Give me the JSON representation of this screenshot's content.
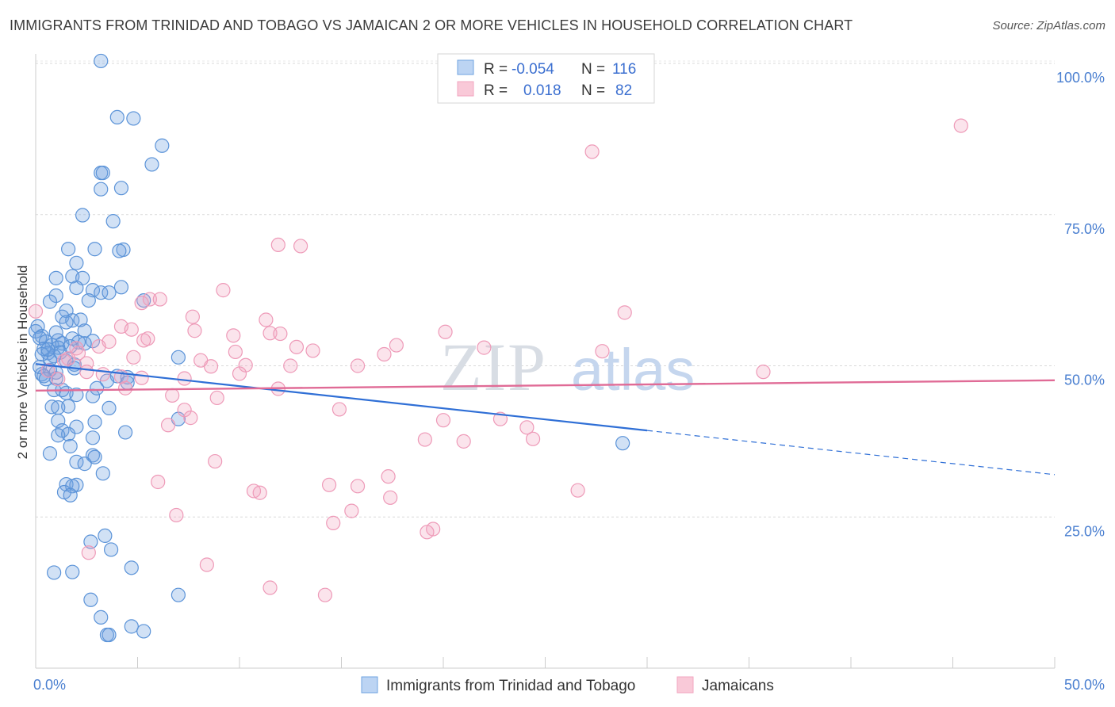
{
  "header": {
    "title": "IMMIGRANTS FROM TRINIDAD AND TOBAGO VS JAMAICAN 2 OR MORE VEHICLES IN HOUSEHOLD CORRELATION CHART",
    "source": "Source: ZipAtlas.com"
  },
  "watermark": {
    "zip": "ZIP",
    "atlas": "atlas"
  },
  "legend_box": {
    "rows": [
      {
        "r_label": "R =",
        "r_value": "-0.054",
        "n_label": "N =",
        "n_value": "116"
      },
      {
        "r_label": "R =",
        "r_value": "0.018",
        "n_label": "N =",
        "n_value": "82"
      }
    ]
  },
  "colors": {
    "blue": "#6fa3e0",
    "blue_line": "#2f6fd6",
    "pink": "#f2a6c0",
    "pink_line": "#e06b96"
  },
  "chart_data": {
    "type": "scatter",
    "title": "IMMIGRANTS FROM TRINIDAD AND TOBAGO VS JAMAICAN 2 OR MORE VEHICLES IN HOUSEHOLD CORRELATION CHART",
    "xlabel": "",
    "ylabel": "2 or more Vehicles in Household",
    "xlim": [
      0,
      50
    ],
    "ylim": [
      0,
      100
    ],
    "x_ticks": [
      "0.0%",
      "50.0%"
    ],
    "y_ticks": [
      "100.0%",
      "75.0%",
      "50.0%",
      "25.0%"
    ],
    "y_tick_values": [
      100,
      75,
      50,
      25
    ],
    "grid": true,
    "legend_position": "bottom",
    "series": [
      {
        "name": "Immigrants from Trinidad and Tobago",
        "color": "#6fa3e0",
        "trend": {
          "x0": 0,
          "y0": 50.3,
          "x1": 30,
          "y1": 39.3,
          "dash_x1": 50,
          "dash_y1": 32.0
        },
        "points": [
          [
            3.2,
            100.4
          ],
          [
            4.0,
            91.1
          ],
          [
            4.8,
            90.9
          ],
          [
            6.2,
            86.4
          ],
          [
            5.7,
            83.3
          ],
          [
            3.2,
            81.9
          ],
          [
            3.3,
            81.9
          ],
          [
            3.2,
            79.2
          ],
          [
            4.2,
            79.4
          ],
          [
            2.3,
            74.9
          ],
          [
            3.8,
            73.9
          ],
          [
            2.9,
            69.3
          ],
          [
            1.6,
            69.3
          ],
          [
            4.3,
            69.2
          ],
          [
            4.1,
            69.0
          ],
          [
            2.0,
            67.0
          ],
          [
            1.0,
            64.5
          ],
          [
            1.8,
            64.8
          ],
          [
            2.3,
            64.5
          ],
          [
            2.0,
            62.9
          ],
          [
            2.8,
            62.5
          ],
          [
            4.2,
            63.0
          ],
          [
            3.2,
            62.1
          ],
          [
            3.6,
            62.1
          ],
          [
            1.0,
            61.6
          ],
          [
            0.7,
            60.6
          ],
          [
            2.6,
            60.8
          ],
          [
            5.3,
            60.8
          ],
          [
            1.5,
            59.1
          ],
          [
            1.3,
            58.1
          ],
          [
            1.8,
            57.5
          ],
          [
            1.5,
            57.2
          ],
          [
            0.1,
            56.5
          ],
          [
            0.0,
            55.7
          ],
          [
            2.4,
            55.8
          ],
          [
            1.0,
            55.5
          ],
          [
            0.3,
            54.9
          ],
          [
            0.2,
            54.6
          ],
          [
            1.8,
            54.5
          ],
          [
            0.5,
            54.0
          ],
          [
            1.1,
            54.2
          ],
          [
            2.8,
            54.1
          ],
          [
            2.1,
            53.9
          ],
          [
            0.8,
            53.4
          ],
          [
            1.3,
            53.7
          ],
          [
            1.7,
            53.2
          ],
          [
            1.1,
            53.0
          ],
          [
            0.4,
            52.8
          ],
          [
            1.2,
            52.2
          ],
          [
            0.6,
            52.1
          ],
          [
            0.3,
            51.9
          ],
          [
            7.0,
            51.4
          ],
          [
            0.9,
            51.6
          ],
          [
            1.5,
            50.8
          ],
          [
            1.9,
            50.2
          ],
          [
            0.2,
            49.8
          ],
          [
            0.7,
            49.3
          ],
          [
            1.0,
            48.9
          ],
          [
            0.3,
            48.6
          ],
          [
            4.0,
            48.3
          ],
          [
            4.5,
            48.1
          ],
          [
            0.4,
            48.3
          ],
          [
            1.0,
            47.9
          ],
          [
            0.5,
            47.8
          ],
          [
            3.5,
            47.5
          ],
          [
            4.5,
            47.2
          ],
          [
            1.5,
            45.5
          ],
          [
            0.9,
            46.0
          ],
          [
            1.3,
            46.0
          ],
          [
            2.0,
            45.2
          ],
          [
            2.8,
            45.0
          ],
          [
            3.0,
            46.3
          ],
          [
            1.6,
            43.3
          ],
          [
            0.8,
            43.2
          ],
          [
            1.1,
            43.1
          ],
          [
            3.6,
            43.0
          ],
          [
            2.9,
            40.7
          ],
          [
            7.0,
            41.2
          ],
          [
            1.1,
            40.9
          ],
          [
            2.0,
            39.9
          ],
          [
            1.3,
            39.3
          ],
          [
            4.4,
            39.0
          ],
          [
            1.6,
            38.7
          ],
          [
            1.1,
            38.5
          ],
          [
            2.8,
            38.1
          ],
          [
            1.7,
            36.7
          ],
          [
            0.7,
            35.5
          ],
          [
            2.8,
            35.2
          ],
          [
            2.9,
            34.9
          ],
          [
            2.0,
            34.1
          ],
          [
            2.4,
            33.8
          ],
          [
            3.3,
            32.2
          ],
          [
            1.5,
            30.4
          ],
          [
            2.0,
            30.3
          ],
          [
            1.8,
            30.1
          ],
          [
            1.4,
            29.1
          ],
          [
            1.7,
            28.6
          ],
          [
            28.8,
            37.2
          ],
          [
            3.4,
            21.9
          ],
          [
            2.7,
            20.9
          ],
          [
            3.7,
            19.6
          ],
          [
            4.7,
            16.6
          ],
          [
            0.9,
            15.8
          ],
          [
            1.8,
            15.9
          ],
          [
            7.0,
            12.1
          ],
          [
            2.7,
            11.3
          ],
          [
            3.2,
            8.4
          ],
          [
            4.7,
            6.9
          ],
          [
            5.3,
            6.1
          ],
          [
            3.5,
            5.5
          ],
          [
            3.6,
            5.5
          ],
          [
            0.7,
            51.0
          ],
          [
            2.4,
            53.7
          ],
          [
            1.9,
            49.6
          ],
          [
            0.6,
            52.7
          ],
          [
            2.2,
            57.6
          ]
        ]
      },
      {
        "name": "Jamaicans",
        "color": "#f2a6c0",
        "trend": {
          "x0": 0,
          "y0": 45.9,
          "x1": 50,
          "y1": 47.6
        },
        "points": [
          [
            45.4,
            89.7
          ],
          [
            27.3,
            85.4
          ],
          [
            11.9,
            70.0
          ],
          [
            13.0,
            69.8
          ],
          [
            9.2,
            62.5
          ],
          [
            5.6,
            61.0
          ],
          [
            6.1,
            61.0
          ],
          [
            5.2,
            60.4
          ],
          [
            0.0,
            59.0
          ],
          [
            28.9,
            58.8
          ],
          [
            7.7,
            58.1
          ],
          [
            11.3,
            57.6
          ],
          [
            4.2,
            56.5
          ],
          [
            4.7,
            56.0
          ],
          [
            7.8,
            55.8
          ],
          [
            20.1,
            55.6
          ],
          [
            11.5,
            55.4
          ],
          [
            12.0,
            55.3
          ],
          [
            9.7,
            55.0
          ],
          [
            5.5,
            54.5
          ],
          [
            5.3,
            54.2
          ],
          [
            3.6,
            54.0
          ],
          [
            17.7,
            53.4
          ],
          [
            12.8,
            53.1
          ],
          [
            2.0,
            52.9
          ],
          [
            27.8,
            52.4
          ],
          [
            9.8,
            52.3
          ],
          [
            2.1,
            52.1
          ],
          [
            17.1,
            51.9
          ],
          [
            1.6,
            51.2
          ],
          [
            4.8,
            51.4
          ],
          [
            8.1,
            50.9
          ],
          [
            2.5,
            50.4
          ],
          [
            10.3,
            50.1
          ],
          [
            12.5,
            50.0
          ],
          [
            15.8,
            50.0
          ],
          [
            8.6,
            49.9
          ],
          [
            0.6,
            49.2
          ],
          [
            2.5,
            49.0
          ],
          [
            3.3,
            48.6
          ],
          [
            35.7,
            49.0
          ],
          [
            5.2,
            48.0
          ],
          [
            1.1,
            47.8
          ],
          [
            4.4,
            46.3
          ],
          [
            11.9,
            46.2
          ],
          [
            6.7,
            45.1
          ],
          [
            8.9,
            44.7
          ],
          [
            14.9,
            42.8
          ],
          [
            7.3,
            42.7
          ],
          [
            7.6,
            41.4
          ],
          [
            6.5,
            40.2
          ],
          [
            20.0,
            41.0
          ],
          [
            22.8,
            41.2
          ],
          [
            24.1,
            39.8
          ],
          [
            19.1,
            37.8
          ],
          [
            21.0,
            37.5
          ],
          [
            24.4,
            37.9
          ],
          [
            8.8,
            34.2
          ],
          [
            17.3,
            31.7
          ],
          [
            6.0,
            30.8
          ],
          [
            14.4,
            30.3
          ],
          [
            15.8,
            30.1
          ],
          [
            10.7,
            29.3
          ],
          [
            11.0,
            29.0
          ],
          [
            26.6,
            29.4
          ],
          [
            17.4,
            28.2
          ],
          [
            15.5,
            26.0
          ],
          [
            6.9,
            25.3
          ],
          [
            14.6,
            24.0
          ],
          [
            19.5,
            23.0
          ],
          [
            19.2,
            22.5
          ],
          [
            2.6,
            19.1
          ],
          [
            8.4,
            17.1
          ],
          [
            11.5,
            13.3
          ],
          [
            14.2,
            12.1
          ],
          [
            4.2,
            48.2
          ],
          [
            3.1,
            53.2
          ],
          [
            1.4,
            50.8
          ],
          [
            7.3,
            47.9
          ],
          [
            13.6,
            52.5
          ],
          [
            10.0,
            48.7
          ],
          [
            22.0,
            53.0
          ]
        ]
      }
    ]
  },
  "bottom_legend": {
    "items": [
      {
        "label": "Immigrants from Trinidad and Tobago"
      },
      {
        "label": "Jamaicans"
      }
    ]
  }
}
